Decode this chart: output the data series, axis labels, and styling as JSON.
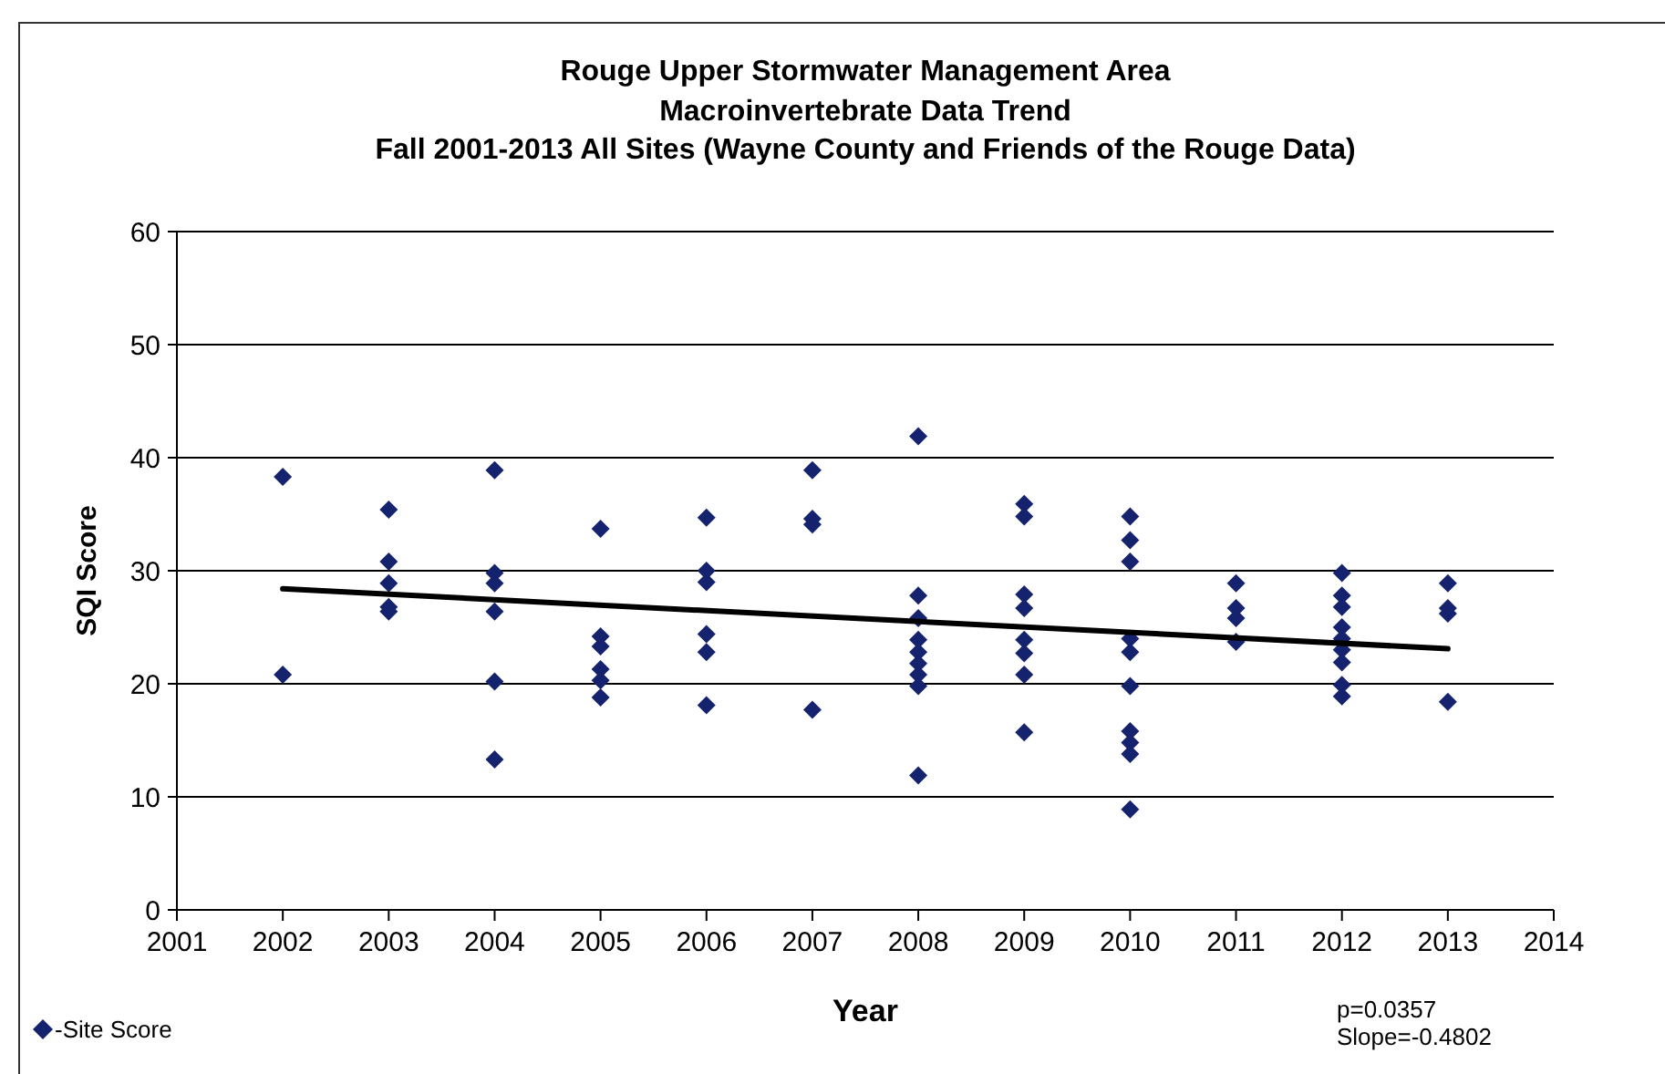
{
  "chart_data": {
    "type": "scatter",
    "title": "Rouge Upper Stormwater Management Area\nMacroinvertebrate Data Trend\nFall 2001-2013 All Sites (Wayne County and Friends of the Rouge Data)",
    "xlabel": "Year",
    "ylabel": "SQI Score",
    "annotations": [
      "p=0.0357",
      "Slope=-0.4802"
    ],
    "xlim": [
      2001,
      2014
    ],
    "xticks": [
      2001,
      2002,
      2003,
      2004,
      2005,
      2006,
      2007,
      2008,
      2009,
      2010,
      2011,
      2012,
      2013,
      2014
    ],
    "ylim": [
      0,
      60
    ],
    "yticks": [
      0,
      10,
      20,
      30,
      40,
      50,
      60
    ],
    "grid": "y",
    "legend": "bottom left",
    "marker": "diamond",
    "series": [
      {
        "name": "-Site Score",
        "color": "#15236f",
        "x": [
          2002,
          2002,
          2003,
          2003,
          2003,
          2003,
          2003,
          2004,
          2004,
          2004,
          2004,
          2004,
          2004,
          2005,
          2005,
          2005,
          2005,
          2005,
          2005,
          2006,
          2006,
          2006,
          2006,
          2006,
          2006,
          2007,
          2007,
          2007,
          2007,
          2008,
          2008,
          2008,
          2008,
          2008,
          2008,
          2008,
          2008,
          2008,
          2009,
          2009,
          2009,
          2009,
          2009,
          2009,
          2009,
          2009,
          2010,
          2010,
          2010,
          2010,
          2010,
          2010,
          2010,
          2010,
          2010,
          2010,
          2011,
          2011,
          2011,
          2011,
          2012,
          2012,
          2012,
          2012,
          2012,
          2012,
          2012,
          2012,
          2012,
          2013,
          2013,
          2013,
          2013
        ],
        "values": [
          38.3,
          20.8,
          35.4,
          30.8,
          28.9,
          26.8,
          26.4,
          38.9,
          29.8,
          28.9,
          26.4,
          20.2,
          13.3,
          33.7,
          24.2,
          23.3,
          21.3,
          20.3,
          18.8,
          34.7,
          30.0,
          29.0,
          24.4,
          22.8,
          18.1,
          38.9,
          34.6,
          34.1,
          17.7,
          41.9,
          27.8,
          25.8,
          23.9,
          22.8,
          21.8,
          20.8,
          19.8,
          11.9,
          35.9,
          34.8,
          27.9,
          26.7,
          23.9,
          22.7,
          20.8,
          15.7,
          34.8,
          32.7,
          30.8,
          24.0,
          22.8,
          19.8,
          15.8,
          14.8,
          13.8,
          8.9,
          28.9,
          26.7,
          25.8,
          23.7,
          29.8,
          27.8,
          26.8,
          25.0,
          24.0,
          23.0,
          21.9,
          19.9,
          18.9,
          28.9,
          26.7,
          26.2,
          18.4
        ]
      },
      {
        "type": "line",
        "color": "#000000",
        "marker": "none",
        "line_style": "solid",
        "x": [
          2002,
          2013
        ],
        "values": [
          28.4,
          23.1
        ]
      }
    ]
  }
}
